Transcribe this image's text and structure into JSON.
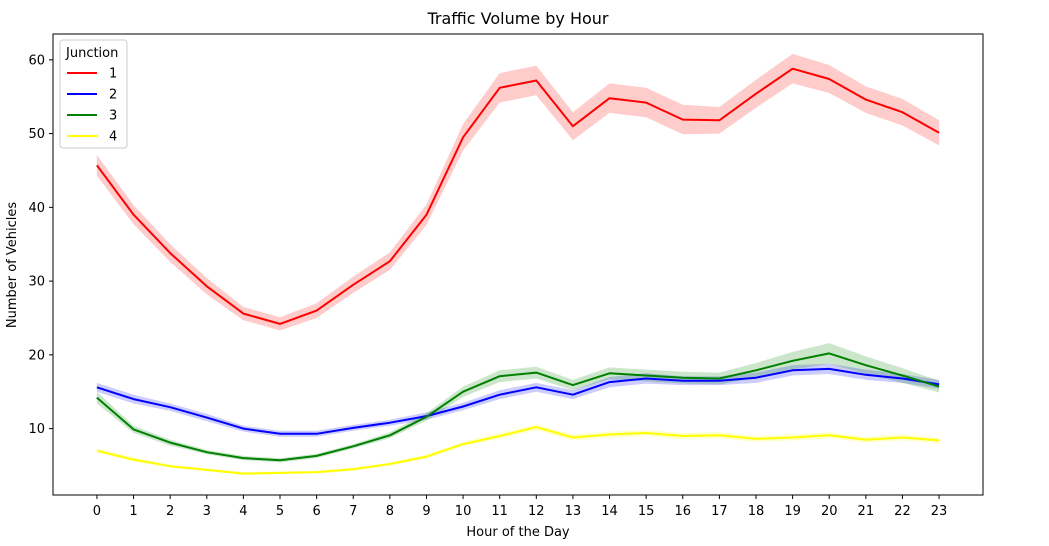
{
  "chart_data": {
    "type": "line",
    "title": "Traffic Volume by Hour",
    "xlabel": "Hour of the Day",
    "ylabel": "Number of Vehicles",
    "xlim": [
      -1.2,
      24.2
    ],
    "ylim": [
      1,
      63.5
    ],
    "x": [
      0,
      1,
      2,
      3,
      4,
      5,
      6,
      7,
      8,
      9,
      10,
      11,
      12,
      13,
      14,
      15,
      16,
      17,
      18,
      19,
      20,
      21,
      22,
      23
    ],
    "yticks": [
      10,
      20,
      30,
      40,
      50,
      60
    ],
    "grid": false,
    "legend": {
      "title": "Junction",
      "placement": "top-left"
    },
    "series": [
      {
        "name": "1",
        "color": "#ff0000",
        "values": [
          45.7,
          39.0,
          33.8,
          29.3,
          25.6,
          24.2,
          26.0,
          29.5,
          32.7,
          39.0,
          49.5,
          56.2,
          57.2,
          51.0,
          54.8,
          54.2,
          51.9,
          51.8,
          55.4,
          58.8,
          57.4,
          54.6,
          52.9,
          50.1
        ],
        "ci": [
          1.4,
          1.3,
          1.2,
          1.1,
          0.9,
          0.9,
          1.0,
          1.1,
          1.2,
          1.4,
          1.8,
          2.0,
          2.0,
          1.9,
          2.0,
          2.0,
          2.0,
          1.8,
          1.9,
          2.0,
          1.9,
          1.8,
          1.8,
          1.7
        ]
      },
      {
        "name": "2",
        "color": "#0000ff",
        "values": [
          15.6,
          14.0,
          12.9,
          11.5,
          10.0,
          9.3,
          9.3,
          10.1,
          10.8,
          11.7,
          13.0,
          14.6,
          15.6,
          14.6,
          16.3,
          16.8,
          16.5,
          16.5,
          16.9,
          17.9,
          18.1,
          17.3,
          16.8,
          16.0
        ],
        "ci": [
          0.6,
          0.6,
          0.5,
          0.5,
          0.4,
          0.4,
          0.4,
          0.4,
          0.4,
          0.5,
          0.5,
          0.6,
          0.6,
          0.6,
          0.7,
          0.7,
          0.6,
          0.6,
          0.7,
          0.7,
          0.7,
          0.7,
          0.6,
          0.6
        ]
      },
      {
        "name": "3",
        "color": "#008000",
        "values": [
          14.2,
          9.9,
          8.1,
          6.8,
          6.0,
          5.7,
          6.3,
          7.6,
          9.1,
          11.6,
          15.0,
          17.1,
          17.6,
          15.9,
          17.5,
          17.2,
          16.9,
          16.8,
          17.9,
          19.2,
          20.2,
          18.6,
          17.2,
          15.7
        ],
        "ci": [
          0.8,
          0.5,
          0.4,
          0.3,
          0.3,
          0.3,
          0.3,
          0.3,
          0.4,
          0.5,
          0.7,
          0.8,
          0.8,
          0.7,
          0.8,
          0.8,
          0.8,
          0.8,
          1.0,
          1.2,
          1.4,
          1.2,
          1.0,
          0.8
        ]
      },
      {
        "name": "4",
        "color": "#ffff00",
        "values": [
          7.0,
          5.8,
          4.9,
          4.4,
          3.9,
          4.0,
          4.1,
          4.5,
          5.2,
          6.2,
          7.9,
          9.0,
          10.2,
          8.8,
          9.2,
          9.4,
          9.0,
          9.1,
          8.6,
          8.8,
          9.1,
          8.5,
          8.8,
          8.4
        ],
        "ci": [
          0.3,
          0.3,
          0.2,
          0.2,
          0.2,
          0.2,
          0.2,
          0.2,
          0.2,
          0.3,
          0.3,
          0.4,
          0.4,
          0.4,
          0.4,
          0.4,
          0.4,
          0.4,
          0.4,
          0.4,
          0.4,
          0.4,
          0.4,
          0.4
        ]
      }
    ]
  }
}
